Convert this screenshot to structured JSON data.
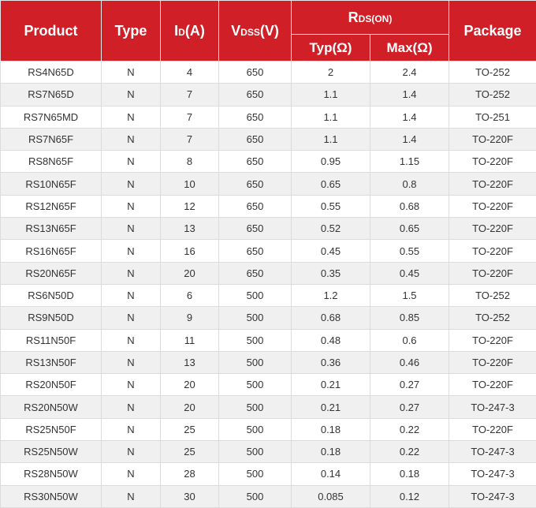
{
  "header": {
    "product": "Product",
    "type": "Type",
    "id_main": "I",
    "id_sub": "D",
    "id_unit": "(A)",
    "vdss_main": "V",
    "vdss_sub": "DSS",
    "vdss_unit": "(V)",
    "rds_main": "R",
    "rds_sub": "DS",
    "rds_paren": "(ON)",
    "typ": "Typ(Ω)",
    "max": "Max(Ω)",
    "package": "Package"
  },
  "colors": {
    "header_bg": "#d11f28",
    "alt_row": "#f0f0f0"
  },
  "rows": [
    [
      "RS4N65D",
      "N",
      "4",
      "650",
      "2",
      "2.4",
      "TO-252"
    ],
    [
      "RS7N65D",
      "N",
      "7",
      "650",
      "1.1",
      "1.4",
      "TO-252"
    ],
    [
      "RS7N65MD",
      "N",
      "7",
      "650",
      "1.1",
      "1.4",
      "TO-251"
    ],
    [
      "RS7N65F",
      "N",
      "7",
      "650",
      "1.1",
      "1.4",
      "TO-220F"
    ],
    [
      "RS8N65F",
      "N",
      "8",
      "650",
      "0.95",
      "1.15",
      "TO-220F"
    ],
    [
      "RS10N65F",
      "N",
      "10",
      "650",
      "0.65",
      "0.8",
      "TO-220F"
    ],
    [
      "RS12N65F",
      "N",
      "12",
      "650",
      "0.55",
      "0.68",
      "TO-220F"
    ],
    [
      "RS13N65F",
      "N",
      "13",
      "650",
      "0.52",
      "0.65",
      "TO-220F"
    ],
    [
      "RS16N65F",
      "N",
      "16",
      "650",
      "0.45",
      "0.55",
      "TO-220F"
    ],
    [
      "RS20N65F",
      "N",
      "20",
      "650",
      "0.35",
      "0.45",
      "TO-220F"
    ],
    [
      "RS6N50D",
      "N",
      "6",
      "500",
      "1.2",
      "1.5",
      "TO-252"
    ],
    [
      "RS9N50D",
      "N",
      "9",
      "500",
      "0.68",
      "0.85",
      "TO-252"
    ],
    [
      "RS11N50F",
      "N",
      "11",
      "500",
      "0.48",
      "0.6",
      "TO-220F"
    ],
    [
      "RS13N50F",
      "N",
      "13",
      "500",
      "0.36",
      "0.46",
      "TO-220F"
    ],
    [
      "RS20N50F",
      "N",
      "20",
      "500",
      "0.21",
      "0.27",
      "TO-220F"
    ],
    [
      "RS20N50W",
      "N",
      "20",
      "500",
      "0.21",
      "0.27",
      "TO-247-3"
    ],
    [
      "RS25N50F",
      "N",
      "25",
      "500",
      "0.18",
      "0.22",
      "TO-220F"
    ],
    [
      "RS25N50W",
      "N",
      "25",
      "500",
      "0.18",
      "0.22",
      "TO-247-3"
    ],
    [
      "RS28N50W",
      "N",
      "28",
      "500",
      "0.14",
      "0.18",
      "TO-247-3"
    ],
    [
      "RS30N50W",
      "N",
      "30",
      "500",
      "0.085",
      "0.12",
      "TO-247-3"
    ]
  ]
}
